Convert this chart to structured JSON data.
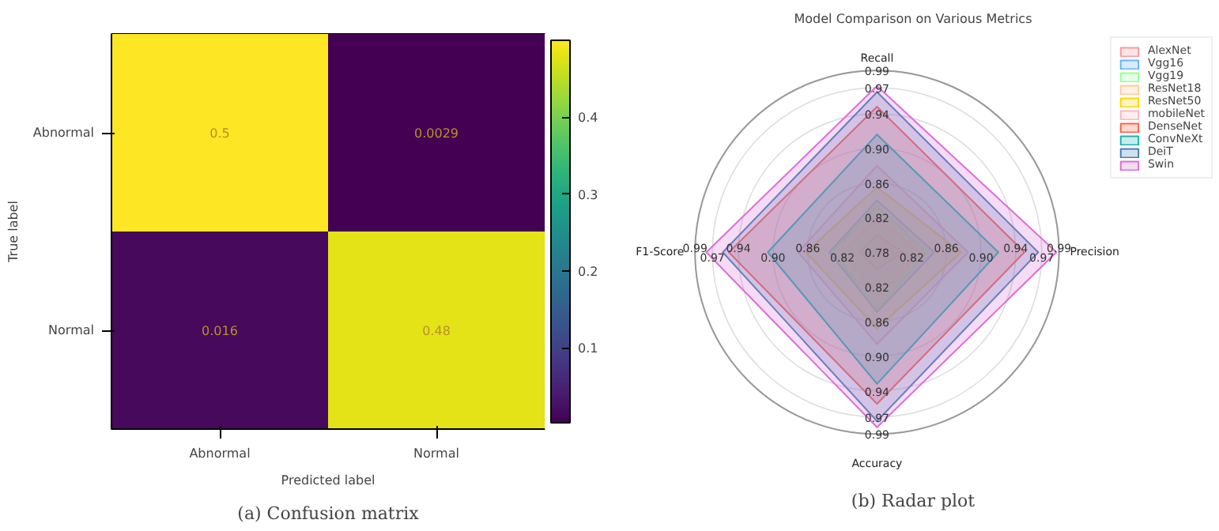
{
  "chart_data": [
    {
      "type": "heatmap",
      "xlabel": "Predicted label",
      "ylabel": "True label",
      "categories": [
        "Abnormal",
        "Normal"
      ],
      "y_categories": [
        "Abnormal",
        "Normal"
      ],
      "cells": [
        [
          0.5,
          0.0029
        ],
        [
          0.016,
          0.48
        ]
      ],
      "data_labels": true,
      "clim": [
        0.0029,
        0.5
      ],
      "cticks": [
        0.1,
        0.2,
        0.3,
        0.4
      ],
      "annotations": [
        "(a) Confusion matrix"
      ]
    },
    {
      "type": "radar",
      "title": "Model Comparison on Various Metrics",
      "categories": [
        "Recall",
        "Precision",
        "Accuracy",
        "F1-Score"
      ],
      "ylim": [
        0.78,
        0.99
      ],
      "yticks": [
        {
          "value": 0.78,
          "label": "0.78"
        },
        {
          "value": 0.82,
          "label": "0.82"
        },
        {
          "value": 0.86,
          "label": "0.86"
        },
        {
          "value": 0.9,
          "label": "0.90"
        },
        {
          "value": 0.94,
          "label": "0.94"
        },
        {
          "value": 0.97,
          "label": "0.97"
        },
        {
          "value": 0.99,
          "label": "0.99"
        }
      ],
      "grid": true,
      "legend": "top right",
      "series": [
        {
          "name": "AlexNet",
          "color": "#ff9999",
          "values": [
            0.8,
            0.81,
            0.8,
            0.8
          ]
        },
        {
          "name": "Vgg16",
          "color": "#66b3ff",
          "values": [
            0.84,
            0.846,
            0.849,
            0.835
          ]
        },
        {
          "name": "Vgg19",
          "color": "#99ff99",
          "values": [
            0.833,
            0.837,
            0.847,
            0.832
          ]
        },
        {
          "name": "ResNet18",
          "color": "#ffcc99",
          "values": [
            0.82,
            0.83,
            0.832,
            0.82
          ]
        },
        {
          "name": "ResNet50",
          "color": "#ffd700",
          "values": [
            0.855,
            0.877,
            0.868,
            0.862
          ]
        },
        {
          "name": "mobileNet",
          "color": "#ffb6c1",
          "values": [
            0.88,
            0.885,
            0.886,
            0.871
          ]
        },
        {
          "name": "DenseNet",
          "color": "#ff6347",
          "values": [
            0.948,
            0.95,
            0.955,
            0.951
          ]
        },
        {
          "name": "ConvNeXt",
          "color": "#20b2aa",
          "values": [
            0.916,
            0.92,
            0.932,
            0.906
          ]
        },
        {
          "name": "DeiT",
          "color": "#4682b4",
          "values": [
            0.965,
            0.966,
            0.975,
            0.958
          ]
        },
        {
          "name": "Swin",
          "color": "#da70d6",
          "values": [
            0.972,
            0.987,
            0.982,
            0.977
          ]
        }
      ],
      "annotations": [
        "(b) Radar plot"
      ]
    }
  ]
}
